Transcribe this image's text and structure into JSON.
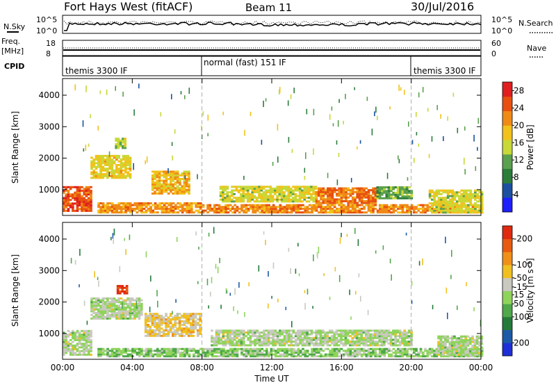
{
  "header": {
    "station": "Fort Hays West (fitACF)",
    "beam": "Beam 11",
    "date": "30/Jul/2016"
  },
  "noise_panel": {
    "left_label": "N.Sky",
    "left_ticks": [
      "10^5",
      "10^0"
    ],
    "right_ticks": [
      "10^5",
      "10^0"
    ],
    "right_label": "N.Search"
  },
  "freq_panel": {
    "left_label_line1": "Freq.",
    "left_label_line2": "[MHz]",
    "left_ticks": [
      "18",
      "8"
    ],
    "right_ticks": [
      "60",
      "0"
    ],
    "right_label": "Nave"
  },
  "cpid_panel": {
    "label": "CPID",
    "segments": [
      "themis 3300 IF",
      "normal (fast) 151 IF",
      "themis 3300 IF"
    ]
  },
  "colors": {
    "power_scale": [
      "#1e1eff",
      "#1c4fa0",
      "#2c7d3a",
      "#5aa04e",
      "#c8d838",
      "#f2c21b",
      "#f08a16",
      "#e85010",
      "#e01e1e"
    ],
    "velocity_scale": [
      "#1e2fd8",
      "#1c5aa8",
      "#247a3a",
      "#4fa84a",
      "#8ed45a",
      "#c9c9c0",
      "#f0c020",
      "#f09018",
      "#e85a10",
      "#e02a10"
    ]
  },
  "chart_data": [
    {
      "type": "heatmap",
      "name": "power",
      "xlabel": "",
      "ylabel": "Slant Range [km]",
      "x_ticks": [
        "00:00",
        "04:00",
        "08:00",
        "12:00",
        "16:00",
        "20:00",
        "00:00"
      ],
      "x_range_hours": [
        0,
        24
      ],
      "y_ticks": [
        "1000",
        "2000",
        "3000",
        "4000"
      ],
      "y_range_km": [
        180,
        4530
      ],
      "colorbar_label": "Power [dB]",
      "colorbar_ticks": [
        "4",
        "8",
        "12",
        "16",
        "20",
        "24",
        "28"
      ],
      "colorbar_range": [
        0,
        30
      ],
      "mode_boundaries_hours": [
        8.0,
        20.0
      ],
      "regions": [
        {
          "t": [
            0.0,
            1.6
          ],
          "r": [
            300,
            1100
          ],
          "level": 25
        },
        {
          "t": [
            1.6,
            3.9
          ],
          "r": [
            1350,
            2100
          ],
          "level": 17
        },
        {
          "t": [
            3.0,
            3.6
          ],
          "r": [
            2300,
            2600
          ],
          "level": 14
        },
        {
          "t": [
            5.1,
            7.3
          ],
          "r": [
            850,
            1550
          ],
          "level": 19
        },
        {
          "t": [
            2.0,
            8.0
          ],
          "r": [
            250,
            550
          ],
          "level": 21
        },
        {
          "t": [
            8.0,
            24.0
          ],
          "r": [
            250,
            500
          ],
          "level": 22
        },
        {
          "t": [
            9.0,
            14.5
          ],
          "r": [
            600,
            1100
          ],
          "level": 16
        },
        {
          "t": [
            14.5,
            18.0
          ],
          "r": [
            550,
            1050
          ],
          "level": 23
        },
        {
          "t": [
            18.0,
            20.0
          ],
          "r": [
            700,
            1100
          ],
          "level": 12
        },
        {
          "t": [
            21.0,
            24.0
          ],
          "r": [
            250,
            1000
          ],
          "level": 16
        }
      ]
    },
    {
      "type": "heatmap",
      "name": "velocity",
      "xlabel": "Time UT",
      "ylabel": "Slant Range [km]",
      "x_ticks": [
        "00:00",
        "04:00",
        "08:00",
        "12:00",
        "16:00",
        "20:00",
        "00:00"
      ],
      "x_range_hours": [
        0,
        24
      ],
      "y_ticks": [
        "1000",
        "2000",
        "3000",
        "4000"
      ],
      "y_range_km": [
        180,
        4530
      ],
      "colorbar_label": "Velocity [m s⁻¹]",
      "colorbar_ticks": [
        "200",
        "100",
        "50",
        "15",
        "-15",
        "-50",
        "-100",
        "-200"
      ],
      "colorbar_range": [
        250,
        -250
      ],
      "mode_boundaries_hours": [
        8.0,
        20.0
      ],
      "regions": [
        {
          "t": [
            0.0,
            1.6
          ],
          "r": [
            300,
            1100
          ],
          "level": 0
        },
        {
          "t": [
            1.6,
            4.5
          ],
          "r": [
            1450,
            2100
          ],
          "level": 0
        },
        {
          "t": [
            3.1,
            3.7
          ],
          "r": [
            2250,
            2500
          ],
          "level": -200
        },
        {
          "t": [
            4.7,
            7.9
          ],
          "r": [
            900,
            1600
          ],
          "level": -60
        },
        {
          "t": [
            2.0,
            8.0
          ],
          "r": [
            250,
            500
          ],
          "level": 40
        },
        {
          "t": [
            8.0,
            24.0
          ],
          "r": [
            250,
            500
          ],
          "level": 30
        },
        {
          "t": [
            8.5,
            20.0
          ],
          "r": [
            600,
            1100
          ],
          "level": 0
        },
        {
          "t": [
            21.5,
            24.0
          ],
          "r": [
            300,
            900
          ],
          "level": 0
        }
      ]
    }
  ]
}
